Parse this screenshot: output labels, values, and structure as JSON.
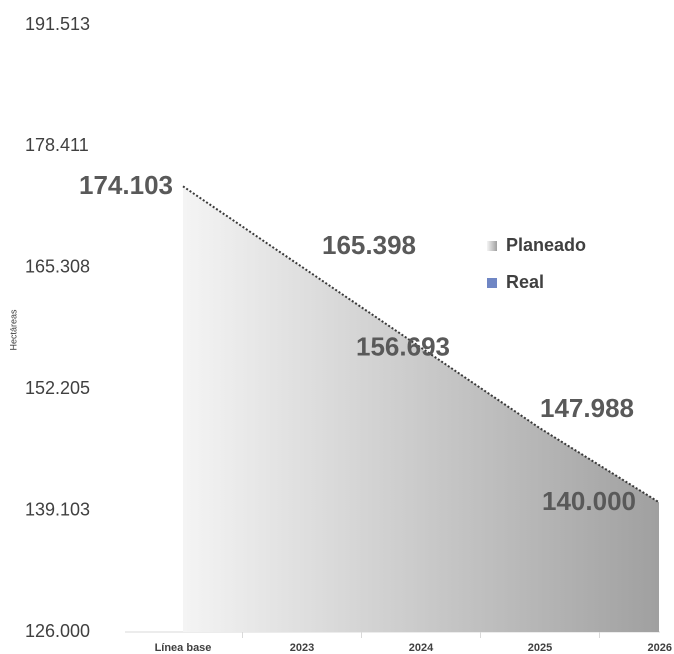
{
  "chart_data": {
    "type": "area",
    "y_axis_label": "Hectáreas",
    "categories": [
      "Línea base",
      "2023",
      "2024",
      "2025",
      "2026"
    ],
    "series": [
      {
        "name": "Planeado",
        "color": "#a6a6a6",
        "values": [
          174103,
          165398,
          156693,
          147988,
          140000
        ],
        "value_labels": [
          "174.103",
          "165.398",
          "156.693",
          "147.988",
          "140.000"
        ]
      },
      {
        "name": "Real",
        "color": "#6f86c4",
        "values": [
          null,
          null,
          null,
          null,
          null
        ]
      }
    ],
    "ylim": [
      126000,
      191513
    ],
    "yticks": [
      {
        "value": 126000,
        "label": "126.000"
      },
      {
        "value": 139103,
        "label": "139.103"
      },
      {
        "value": 152205,
        "label": "152.205"
      },
      {
        "value": 165308,
        "label": "165.308"
      },
      {
        "value": 178411,
        "label": "178.411"
      },
      {
        "value": 191513,
        "label": "191.513"
      }
    ],
    "legend": "right"
  }
}
